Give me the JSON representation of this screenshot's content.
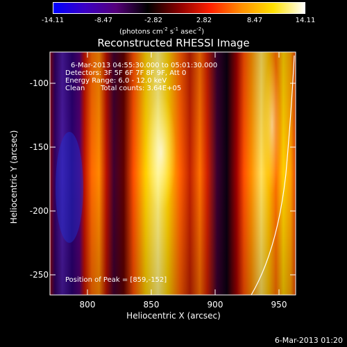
{
  "colorbar": {
    "ticks": [
      "-14.11",
      "-8.47",
      "-2.82",
      "2.82",
      "8.47",
      "14.11"
    ],
    "unit_prefix": "(photons cm",
    "unit_exp1": "-2",
    "unit_s": " s",
    "unit_exp2": "-1",
    "unit_asec": " asec",
    "unit_exp3": "-2",
    "unit_close": ")",
    "gradient_colors": [
      "#0000ff",
      "#3b00c4",
      "#55007a",
      "#000000",
      "#8a0000",
      "#ff2000",
      "#ff9000",
      "#ffe000",
      "#ffffff"
    ]
  },
  "title": "Reconstructed RHESSI Image",
  "annotations": {
    "time_range": "6-Mar-2013 04:55:30.000 to 05:01:30.000",
    "detectors": "Detectors: 3F 5F 6F 7F 8F 9F, Att 0",
    "energy": "Energy Range: 6.0 - 12.0 keV",
    "clean_label": "Clean",
    "total_counts": "Total counts: 3.64E+05",
    "peak": "Position of Peak = [859,-152]"
  },
  "axes": {
    "xlabel": "Heliocentric X (arcsec)",
    "ylabel": "Heliocentric Y (arcsec)",
    "xticks": [
      "800",
      "850",
      "900",
      "950"
    ],
    "yticks": [
      "-100",
      "-150",
      "-200",
      "-250"
    ]
  },
  "timestamp": "6-Mar-2013 01:20"
}
